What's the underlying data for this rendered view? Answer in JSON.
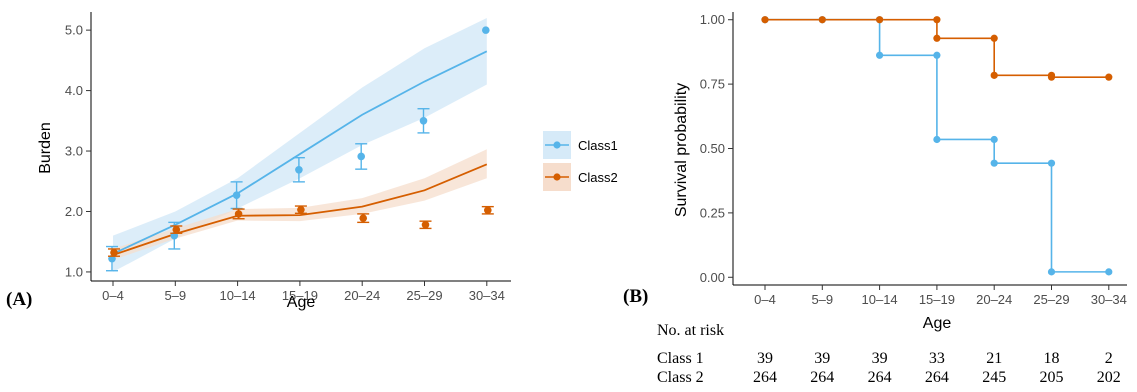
{
  "colors": {
    "class1": "#56B4E9",
    "class2": "#D55E00",
    "class1_band": "#D6EAF8",
    "class2_band": "#F6DDCC"
  },
  "panel_labels": {
    "a": "(A)",
    "b": "(B)"
  },
  "legend": {
    "class1": "Class1",
    "class2": "Class2"
  },
  "risk_table": {
    "title": "No. at risk",
    "rows": [
      {
        "label": "Class 1",
        "values": [
          "39",
          "39",
          "39",
          "33",
          "21",
          "18",
          "2"
        ]
      },
      {
        "label": "Class 2",
        "values": [
          "264",
          "264",
          "264",
          "264",
          "245",
          "205",
          "202"
        ]
      }
    ]
  },
  "chart_data": [
    {
      "type": "line",
      "xlabel": "Age",
      "ylabel": "Burden",
      "categories": [
        "0–4",
        "5–9",
        "10–14",
        "15–19",
        "20–24",
        "25–29",
        "30–34"
      ],
      "ylim": [
        0.85,
        5.3
      ],
      "yticks": [
        "1.0",
        "2.0",
        "3.0",
        "4.0",
        "5.0"
      ],
      "ytick_values": [
        1.0,
        2.0,
        3.0,
        4.0,
        5.0
      ],
      "grid": false,
      "legend_position": "right",
      "series": [
        {
          "name": "Class1",
          "color_key": "class1",
          "fit": [
            1.3,
            1.78,
            2.3,
            2.95,
            3.6,
            4.15,
            4.65
          ],
          "band_low": [
            1.0,
            1.55,
            2.05,
            2.55,
            3.1,
            3.55,
            4.1
          ],
          "band_high": [
            1.6,
            2.0,
            2.55,
            3.3,
            4.05,
            4.7,
            5.2
          ],
          "points": [
            1.22,
            1.6,
            2.27,
            2.69,
            2.91,
            3.5,
            5.0
          ],
          "err_low": [
            1.02,
            1.38,
            2.05,
            2.49,
            2.7,
            3.3,
            5.0
          ],
          "err_high": [
            1.42,
            1.82,
            2.49,
            2.89,
            3.12,
            3.7,
            5.0
          ]
        },
        {
          "name": "Class2",
          "color_key": "class2",
          "fit": [
            1.28,
            1.63,
            1.93,
            1.94,
            2.08,
            2.35,
            2.78
          ],
          "band_low": [
            1.2,
            1.55,
            1.85,
            1.84,
            1.96,
            2.18,
            2.55
          ],
          "band_high": [
            1.38,
            1.72,
            2.04,
            2.06,
            2.22,
            2.55,
            3.03
          ],
          "points": [
            1.32,
            1.7,
            1.96,
            2.03,
            1.89,
            1.78,
            2.02
          ],
          "err_low": [
            1.26,
            1.64,
            1.88,
            1.97,
            1.82,
            1.72,
            1.96
          ],
          "err_high": [
            1.38,
            1.76,
            2.04,
            2.09,
            1.96,
            1.84,
            2.08
          ]
        }
      ]
    },
    {
      "type": "line",
      "subtype": "step",
      "xlabel": "Age",
      "ylabel": "Survival probability",
      "categories": [
        "0–4",
        "5–9",
        "10–14",
        "15–19",
        "20–24",
        "25–29",
        "30–34"
      ],
      "ylim": [
        -0.03,
        1.03
      ],
      "yticks": [
        "0.00",
        "0.25",
        "0.50",
        "0.75",
        "1.00"
      ],
      "ytick_values": [
        0.0,
        0.25,
        0.5,
        0.75,
        1.0
      ],
      "grid": false,
      "series": [
        {
          "name": "Class 1",
          "color_key": "class1",
          "points": [
            {
              "x": 0,
              "y": 1.0
            },
            {
              "x": 1,
              "y": 1.0
            },
            {
              "x": 2,
              "y": 1.0
            },
            {
              "x": 2,
              "y": 0.862
            },
            {
              "x": 3,
              "y": 0.862
            },
            {
              "x": 3,
              "y": 0.535
            },
            {
              "x": 4,
              "y": 0.535
            },
            {
              "x": 4,
              "y": 0.443
            },
            {
              "x": 5,
              "y": 0.443
            },
            {
              "x": 5,
              "y": 0.021
            },
            {
              "x": 6,
              "y": 0.021
            }
          ]
        },
        {
          "name": "Class 2",
          "color_key": "class2",
          "points": [
            {
              "x": 0,
              "y": 1.0
            },
            {
              "x": 1,
              "y": 1.0
            },
            {
              "x": 2,
              "y": 1.0
            },
            {
              "x": 3,
              "y": 1.0
            },
            {
              "x": 3,
              "y": 0.928
            },
            {
              "x": 4,
              "y": 0.928
            },
            {
              "x": 4,
              "y": 0.784
            },
            {
              "x": 5,
              "y": 0.784
            },
            {
              "x": 5,
              "y": 0.777
            },
            {
              "x": 6,
              "y": 0.777
            }
          ]
        }
      ]
    }
  ]
}
